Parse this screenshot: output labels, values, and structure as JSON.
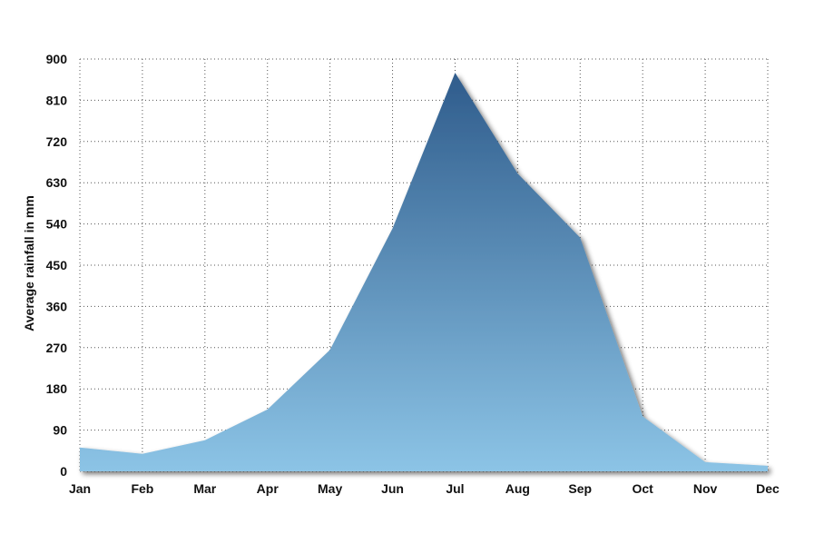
{
  "chart_data": {
    "type": "area",
    "title": "",
    "xlabel": "",
    "ylabel": "Average rainfall in mm",
    "categories": [
      "Jan",
      "Feb",
      "Mar",
      "Apr",
      "May",
      "Jun",
      "Jul",
      "Aug",
      "Sep",
      "Oct",
      "Nov",
      "Dec"
    ],
    "series": [
      {
        "values": [
          52,
          38,
          68,
          135,
          265,
          530,
          870,
          650,
          510,
          120,
          20,
          12
        ]
      }
    ],
    "ylim": [
      0,
      900
    ],
    "yticks": [
      0,
      90,
      180,
      270,
      360,
      450,
      540,
      630,
      720,
      810,
      900
    ],
    "grid": true,
    "colors": {
      "fill_top": "#2f5c8c",
      "fill_bottom": "#8cc4e6",
      "grid": "#555555",
      "text": "#111111"
    }
  }
}
